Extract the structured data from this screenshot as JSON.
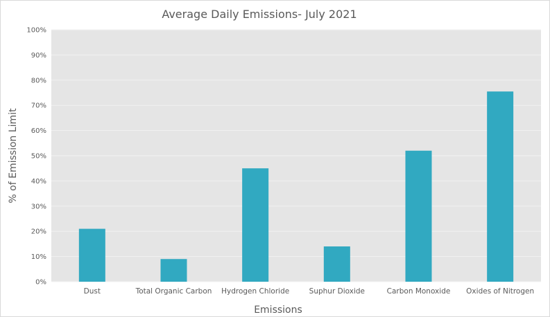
{
  "chart_data": {
    "type": "bar",
    "title": "Average Daily Emissions- July 2021",
    "xlabel": "Emissions",
    "ylabel": "% of Emission Limit",
    "categories": [
      "Dust",
      "Total Organic Carbon",
      "Hydrogen Chloride",
      "Suphur Dioxide",
      "Carbon  Monoxide",
      "Oxides of Nitrogen"
    ],
    "values": [
      21,
      9,
      45,
      14,
      52,
      75.5
    ],
    "value_unit": "%",
    "ylim": [
      0,
      100
    ],
    "yticks": [
      "0%",
      "10%",
      "20%",
      "30%",
      "40%",
      "50%",
      "60%",
      "70%",
      "80%",
      "90%",
      "100%"
    ],
    "grid": true,
    "legend": "none",
    "colors": {
      "bar": "#31a9c1",
      "plot_background": "#e5e5e5",
      "gridline": "#f2f2f2",
      "text": "#595959"
    }
  }
}
